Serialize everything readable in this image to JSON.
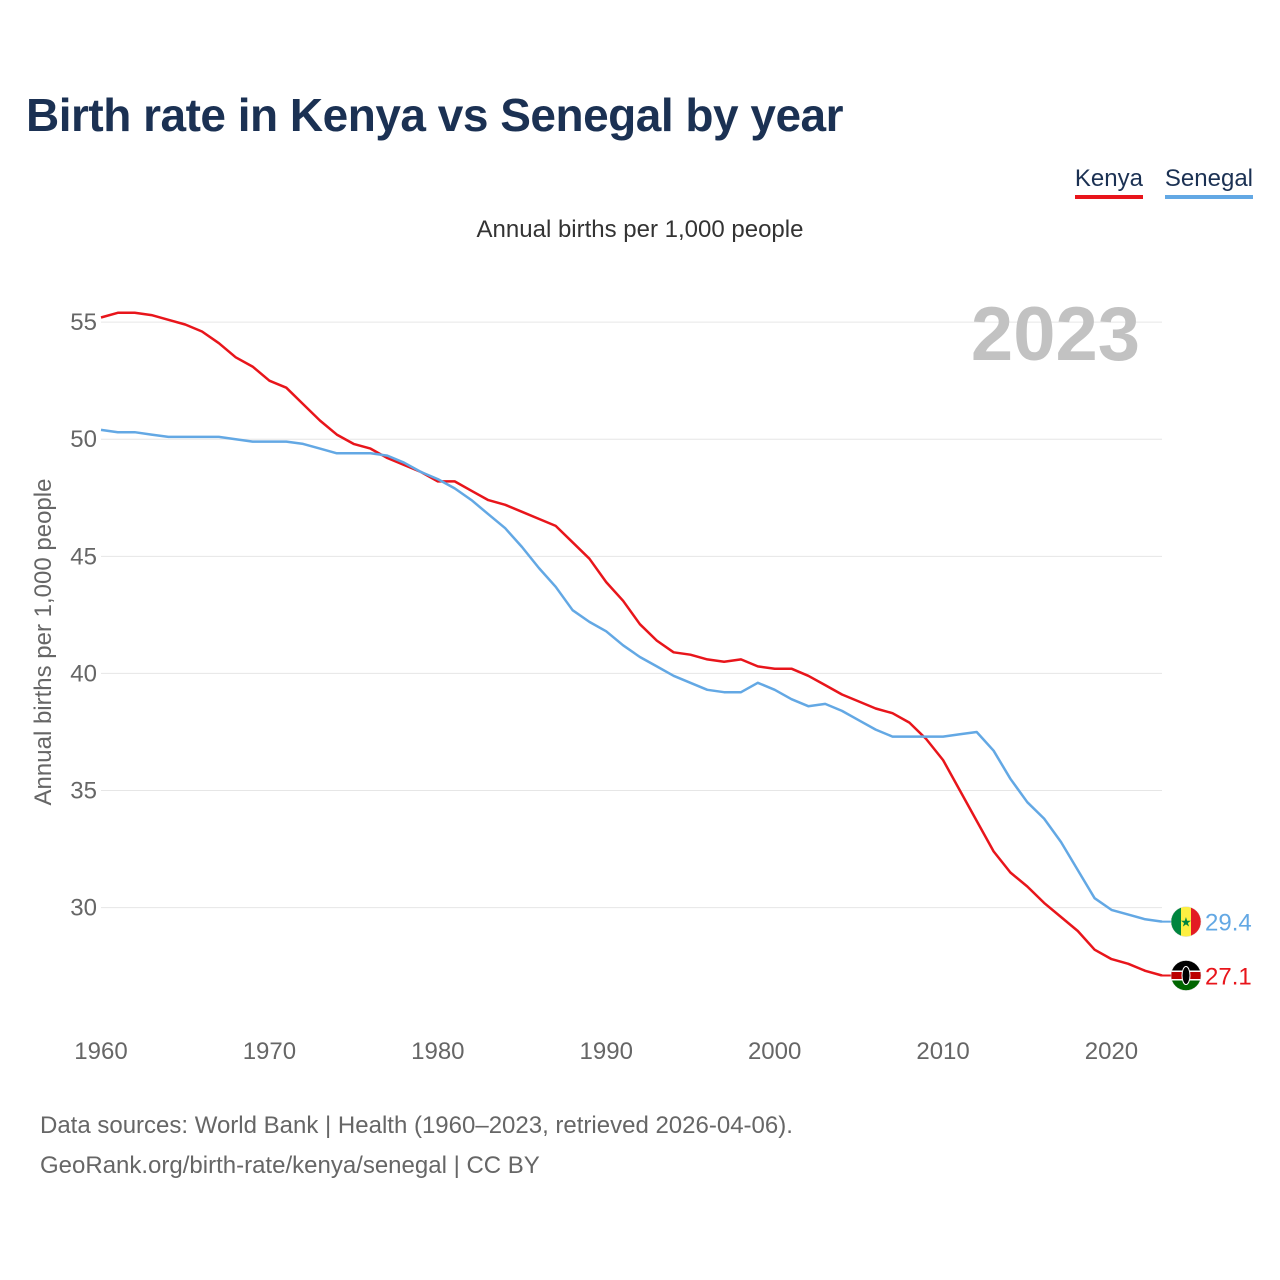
{
  "title": "Birth rate in Kenya vs Senegal by year",
  "legend": [
    {
      "name": "Kenya",
      "color": "#e8151b"
    },
    {
      "name": "Senegal",
      "color": "#63a8e4"
    }
  ],
  "subtitle": "Annual births per 1,000 people",
  "year_watermark": "2023",
  "source_line1": "Data sources: World Bank | Health (1960–2023, retrieved 2026-04-06).",
  "source_line2": "GeoRank.org/birth-rate/kenya/senegal | CC BY",
  "chart_data": {
    "type": "line",
    "title": "Birth rate in Kenya vs Senegal by year",
    "xlabel": "",
    "ylabel": "Annual births per 1,000 people",
    "xlim": [
      1960,
      2023
    ],
    "ylim": [
      25.2,
      56.8
    ],
    "y_ticks": [
      30,
      35,
      40,
      45,
      50,
      55
    ],
    "x_ticks": [
      1960,
      1970,
      1980,
      1990,
      2000,
      2010,
      2020
    ],
    "grid": true,
    "legend_position": "top-right",
    "x": [
      1960,
      1961,
      1962,
      1963,
      1964,
      1965,
      1966,
      1967,
      1968,
      1969,
      1970,
      1971,
      1972,
      1973,
      1974,
      1975,
      1976,
      1977,
      1978,
      1979,
      1980,
      1981,
      1982,
      1983,
      1984,
      1985,
      1986,
      1987,
      1988,
      1989,
      1990,
      1991,
      1992,
      1993,
      1994,
      1995,
      1996,
      1997,
      1998,
      1999,
      2000,
      2001,
      2002,
      2003,
      2004,
      2005,
      2006,
      2007,
      2008,
      2009,
      2010,
      2011,
      2012,
      2013,
      2014,
      2015,
      2016,
      2017,
      2018,
      2019,
      2020,
      2021,
      2022,
      2023
    ],
    "series": [
      {
        "name": "Kenya",
        "color": "#e8151b",
        "end_label": "27.1",
        "values": [
          55.2,
          55.4,
          55.4,
          55.3,
          55.1,
          54.9,
          54.6,
          54.1,
          53.5,
          53.1,
          52.5,
          52.2,
          51.5,
          50.8,
          50.2,
          49.8,
          49.6,
          49.2,
          48.9,
          48.6,
          48.2,
          48.2,
          47.8,
          47.4,
          47.2,
          46.9,
          46.6,
          46.3,
          45.6,
          44.9,
          43.9,
          43.1,
          42.1,
          41.4,
          40.9,
          40.8,
          40.6,
          40.5,
          40.6,
          40.3,
          40.2,
          40.2,
          39.9,
          39.5,
          39.1,
          38.8,
          38.5,
          38.3,
          37.9,
          37.2,
          36.3,
          35.0,
          33.7,
          32.4,
          31.5,
          30.9,
          30.2,
          29.6,
          29.0,
          28.2,
          27.8,
          27.6,
          27.3,
          27.1
        ]
      },
      {
        "name": "Senegal",
        "color": "#63a8e4",
        "end_label": "29.4",
        "values": [
          50.4,
          50.3,
          50.3,
          50.2,
          50.1,
          50.1,
          50.1,
          50.1,
          50.0,
          49.9,
          49.9,
          49.9,
          49.8,
          49.6,
          49.4,
          49.4,
          49.4,
          49.3,
          49.0,
          48.6,
          48.3,
          47.9,
          47.4,
          46.8,
          46.2,
          45.4,
          44.5,
          43.7,
          42.7,
          42.2,
          41.8,
          41.2,
          40.7,
          40.3,
          39.9,
          39.6,
          39.3,
          39.2,
          39.2,
          39.6,
          39.3,
          38.9,
          38.6,
          38.7,
          38.4,
          38.0,
          37.6,
          37.3,
          37.3,
          37.3,
          37.3,
          37.4,
          37.5,
          36.7,
          35.5,
          34.5,
          33.8,
          32.8,
          31.6,
          30.4,
          29.9,
          29.7,
          29.5,
          29.4
        ]
      }
    ]
  }
}
